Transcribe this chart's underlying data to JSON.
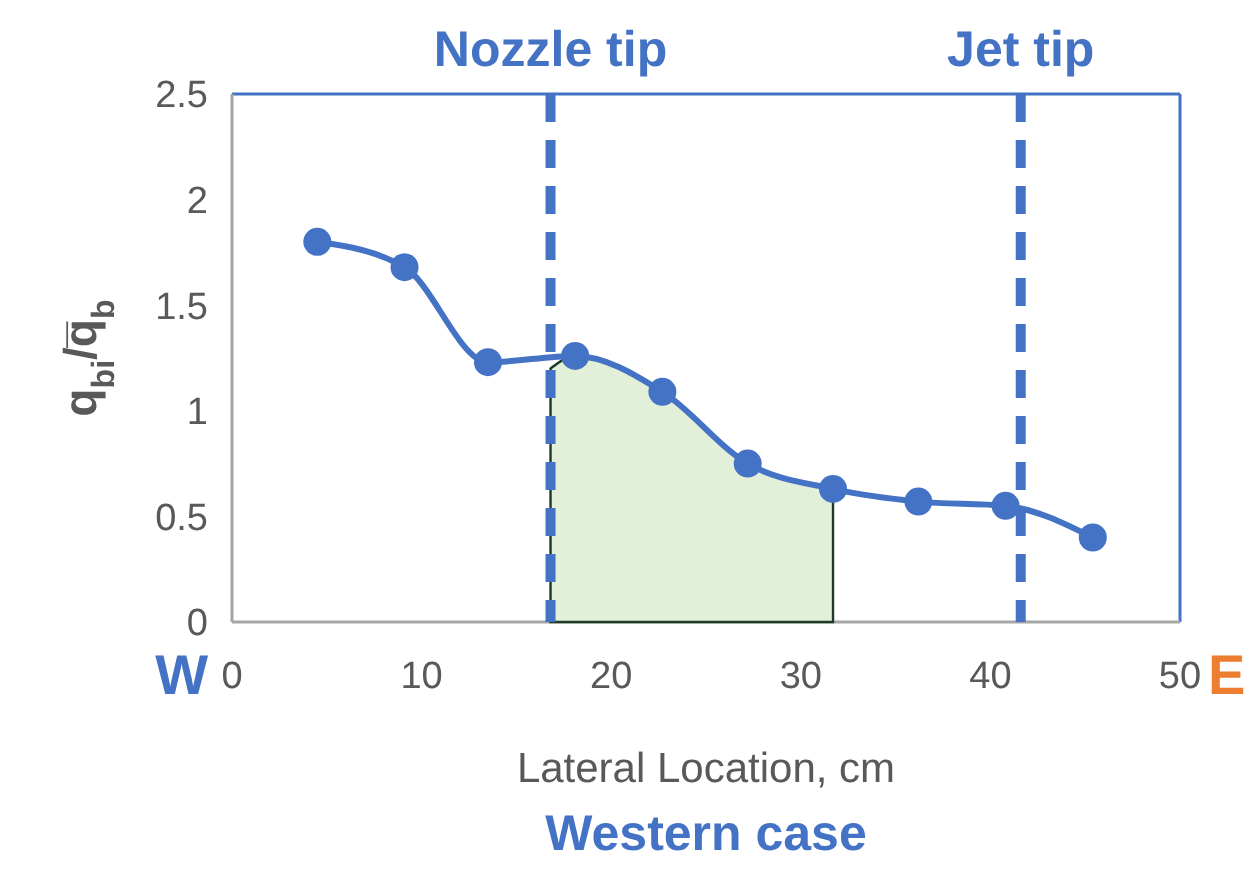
{
  "chart_data": {
    "type": "line",
    "xlabel": "Lateral Location, cm",
    "ylabel": "q$_{bi}$/q̅$_{b}$",
    "xlim": [
      0,
      50
    ],
    "xticks": [
      0,
      10,
      20,
      30,
      40,
      50
    ],
    "ylim": [
      0,
      2.5
    ],
    "yticks": [
      0,
      0.5,
      1,
      1.5,
      2,
      2.5
    ],
    "grid": false,
    "series": [
      {
        "type": "area",
        "color": "#e2efd9",
        "x": [
          16.8,
          18.1,
          22.7,
          27.2,
          31.7
        ],
        "values": [
          1.2,
          1.26,
          1.09,
          0.75,
          0.63
        ]
      },
      {
        "color": "#4472c4",
        "marker": "circle",
        "x": [
          4.5,
          9.1,
          13.5,
          18.1,
          22.7,
          27.2,
          31.7,
          36.2,
          40.8,
          45.4
        ],
        "values": [
          1.8,
          1.68,
          1.23,
          1.26,
          1.09,
          0.75,
          0.63,
          0.57,
          0.55,
          0.4
        ]
      }
    ],
    "ref_lines": [
      {
        "axis": "x",
        "value": 16.8,
        "label": "Nozzle tip",
        "color": "#4472c4",
        "line_style": "dashed"
      },
      {
        "axis": "x",
        "value": 41.6,
        "label": "Jet tip",
        "color": "#4472c4",
        "line_style": "dashed"
      }
    ],
    "annotations": [
      "W",
      "E",
      "Western case"
    ]
  }
}
